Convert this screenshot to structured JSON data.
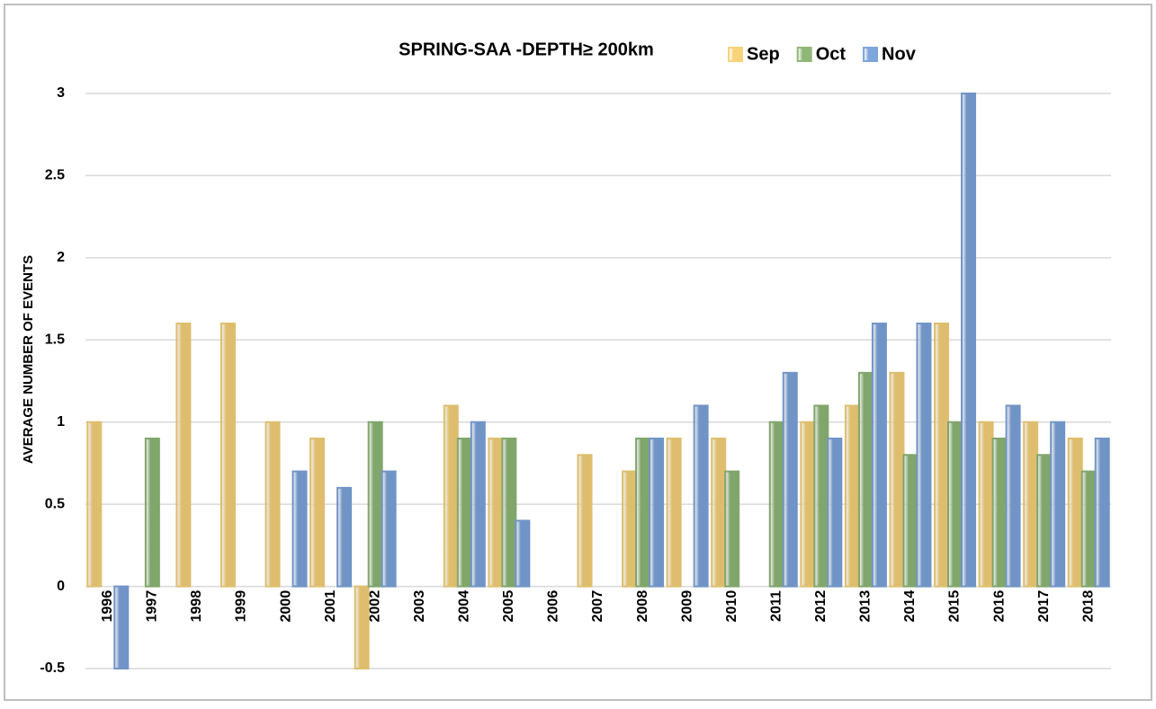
{
  "chart_data": {
    "type": "bar",
    "title": "SPRING-SAA -DEPTH≥ 200km",
    "y_label": "AVERAGE NUMBER OF EVENTS",
    "categories": [
      "1996",
      "1997",
      "1998",
      "1999",
      "2000",
      "2001",
      "2002",
      "2003",
      "2004",
      "2005",
      "2006",
      "2007",
      "2008",
      "2009",
      "2010",
      "2011",
      "2012",
      "2013",
      "2014",
      "2015",
      "2016",
      "2017",
      "2018"
    ],
    "series": [
      {
        "name": "Sep",
        "color": "#f7d37a",
        "values": [
          1,
          0,
          1.6,
          1.6,
          1,
          0.9,
          -0.5,
          0,
          1.1,
          0.9,
          0,
          0.8,
          0.7,
          0.9,
          0.9,
          0,
          1,
          1.1,
          1.3,
          1.6,
          1,
          1,
          0.9
        ]
      },
      {
        "name": "Oct",
        "color": "#8fb878",
        "values": [
          0,
          0.9,
          0,
          0,
          0,
          0,
          1,
          0,
          0.9,
          0.9,
          0,
          0,
          0.9,
          0,
          0.7,
          1,
          1.1,
          1.3,
          0.8,
          1,
          0.9,
          0.8,
          0.7
        ]
      },
      {
        "name": "Nov",
        "color": "#7ea5dc",
        "values": [
          -0.5,
          0,
          0,
          0,
          0.7,
          0.6,
          0.7,
          0,
          1,
          0.4,
          0,
          0,
          0.9,
          1.1,
          0,
          1.3,
          0.9,
          1.6,
          1.6,
          3,
          1.1,
          1,
          0.9
        ]
      }
    ],
    "ylim": [
      -0.5,
      3
    ],
    "yticks": [
      -0.5,
      0,
      0.5,
      1,
      1.5,
      2,
      2.5,
      3
    ],
    "grid": true,
    "legend": "top"
  }
}
